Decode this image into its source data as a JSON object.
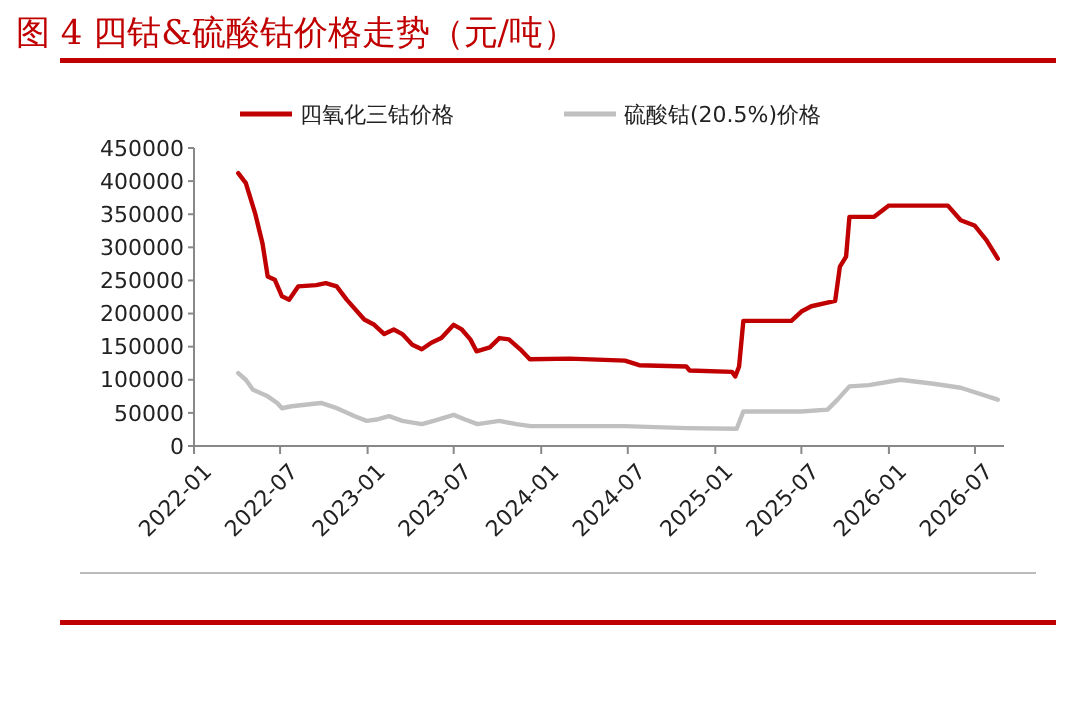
{
  "chart_data": {
    "type": "line",
    "title": "图 4 四钴&硫酸钴价格走势（元/吨）",
    "series": [
      {
        "name": "四氧化三钴价格",
        "color": "#c00000",
        "x": [
          "2022-04-04",
          "2022-04-20",
          "2022-05-10",
          "2022-05-25",
          "2022-06-05",
          "2022-06-20",
          "2022-07-05",
          "2022-07-20",
          "2022-08-08",
          "2022-09-15",
          "2022-10-05",
          "2022-10-28",
          "2022-11-18",
          "2022-12-25",
          "2023-01-15",
          "2023-02-05",
          "2023-02-25",
          "2023-03-15",
          "2023-04-05",
          "2023-04-25",
          "2023-05-15",
          "2023-06-05",
          "2023-07-01",
          "2023-07-18",
          "2023-08-05",
          "2023-08-18",
          "2023-09-15",
          "2023-10-05",
          "2023-10-25",
          "2023-11-18",
          "2023-12-08",
          "2024-03-01",
          "2024-06-25",
          "2024-07-25",
          "2024-11-01",
          "2024-11-08",
          "2025-02-05",
          "2025-02-12",
          "2025-02-20",
          "2025-03-01",
          "2025-06-10",
          "2025-07-01",
          "2025-07-22",
          "2025-09-10",
          "2025-09-20",
          "2025-10-03",
          "2025-10-10",
          "2025-12-01",
          "2026-01-01",
          "2026-05-05",
          "2026-06-01",
          "2026-06-30",
          "2026-07-25",
          "2026-08-18"
        ],
        "values": [
          412000,
          397000,
          350000,
          306000,
          256000,
          251000,
          226000,
          221000,
          241000,
          243000,
          246000,
          241000,
          221000,
          191000,
          183000,
          169000,
          176000,
          169000,
          153000,
          146000,
          156000,
          163000,
          183000,
          176000,
          161000,
          143000,
          149000,
          163000,
          161000,
          146000,
          131000,
          132000,
          129000,
          122000,
          120000,
          114000,
          112000,
          105000,
          120000,
          189000,
          189000,
          203000,
          211000,
          219000,
          271000,
          286000,
          346000,
          346000,
          363000,
          363000,
          341000,
          333000,
          311000,
          283000
        ]
      },
      {
        "name": "硫酸钴(20.5%)价格",
        "color": "#c0c0c0",
        "x": [
          "2022-04-04",
          "2022-04-20",
          "2022-05-05",
          "2022-06-05",
          "2022-06-25",
          "2022-07-05",
          "2022-07-25",
          "2022-09-25",
          "2022-10-25",
          "2022-12-05",
          "2022-12-30",
          "2023-01-20",
          "2023-02-15",
          "2023-03-15",
          "2023-04-25",
          "2023-05-20",
          "2023-07-01",
          "2023-07-25",
          "2023-08-20",
          "2023-10-05",
          "2023-11-10",
          "2023-12-10",
          "2024-06-25",
          "2024-11-01",
          "2025-02-15",
          "2025-03-01",
          "2025-07-01",
          "2025-08-25",
          "2025-09-15",
          "2025-10-10",
          "2025-11-20",
          "2026-01-25",
          "2026-04-05",
          "2026-06-01",
          "2026-08-18"
        ],
        "values": [
          110000,
          100000,
          85000,
          75000,
          65000,
          57000,
          60000,
          65000,
          58000,
          45000,
          38000,
          40000,
          45000,
          38000,
          33000,
          38000,
          47000,
          40000,
          33000,
          38000,
          33000,
          30000,
          30000,
          27000,
          26000,
          52000,
          52000,
          55000,
          70000,
          90000,
          92000,
          100000,
          94000,
          88000,
          70000
        ]
      }
    ],
    "xlim": [
      "2022-01",
      "2026-08-31"
    ],
    "xticks": [
      "2022-01",
      "2022-07",
      "2023-01",
      "2023-07",
      "2024-01",
      "2024-07",
      "2025-01",
      "2025-07",
      "2026-01",
      "2026-07"
    ],
    "ylim": [
      0,
      450000
    ],
    "yticks": [
      0,
      50000,
      100000,
      150000,
      200000,
      250000,
      300000,
      350000,
      400000,
      450000
    ],
    "grid": false,
    "legend": "top",
    "line_style": "solid",
    "marker": "none"
  }
}
